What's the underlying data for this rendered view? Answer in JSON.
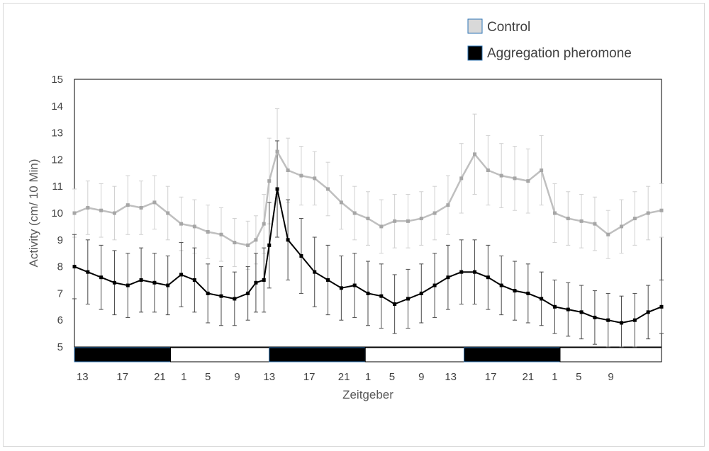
{
  "chart_data": {
    "type": "scatter",
    "xlabel": "Zeitgeber",
    "ylabel": "Activity (cm/ 10 Min)",
    "ylim": [
      5,
      15
    ],
    "yticks": [
      5,
      6,
      7,
      8,
      9,
      10,
      11,
      12,
      13,
      14,
      15
    ],
    "xlim": [
      0,
      22
    ],
    "x_tick_labels": [
      {
        "label": "13",
        "x": 0.3
      },
      {
        "label": "17",
        "x": 1.8
      },
      {
        "label": "21",
        "x": 3.2
      },
      {
        "label": "1",
        "x": 4.1
      },
      {
        "label": "5",
        "x": 5.0
      },
      {
        "label": "9",
        "x": 6.1
      },
      {
        "label": "13",
        "x": 7.3
      },
      {
        "label": "17",
        "x": 8.8
      },
      {
        "label": "21",
        "x": 10.1
      },
      {
        "label": "1",
        "x": 11.0
      },
      {
        "label": "5",
        "x": 11.9
      },
      {
        "label": "9",
        "x": 13.0
      },
      {
        "label": "13",
        "x": 14.1
      },
      {
        "label": "17",
        "x": 15.6
      },
      {
        "label": "21",
        "x": 17.0
      },
      {
        "label": "1",
        "x": 18.0
      },
      {
        "label": "5",
        "x": 18.9
      },
      {
        "label": "9",
        "x": 20.1
      }
    ],
    "light_dark_bar": [
      {
        "state": "dark",
        "start": 0.0,
        "end": 3.6
      },
      {
        "state": "light",
        "start": 3.6,
        "end": 7.3
      },
      {
        "state": "dark",
        "start": 7.3,
        "end": 10.9
      },
      {
        "state": "light",
        "start": 10.9,
        "end": 14.6
      },
      {
        "state": "dark",
        "start": 14.6,
        "end": 18.2
      },
      {
        "state": "light",
        "start": 18.2,
        "end": 22.0
      }
    ],
    "legend_position": "top-right",
    "series": [
      {
        "name": "Control",
        "color": "#bfbfbf",
        "marker_color": "#a6a6a6",
        "x": [
          0.0,
          0.5,
          1.0,
          1.5,
          2.0,
          2.5,
          3.0,
          3.5,
          4.0,
          4.5,
          5.0,
          5.5,
          6.0,
          6.5,
          6.8,
          7.1,
          7.3,
          7.6,
          8.0,
          8.5,
          9.0,
          9.5,
          10.0,
          10.5,
          11.0,
          11.5,
          12.0,
          12.5,
          13.0,
          13.5,
          14.0,
          14.5,
          15.0,
          15.5,
          16.0,
          16.5,
          17.0,
          17.5,
          18.0,
          18.5,
          19.0,
          19.5,
          20.0,
          20.5,
          21.0,
          21.5,
          22.0
        ],
        "y": [
          10.0,
          10.2,
          10.1,
          10.0,
          10.3,
          10.2,
          10.4,
          10.0,
          9.6,
          9.5,
          9.3,
          9.2,
          8.9,
          8.8,
          9.0,
          9.6,
          11.2,
          12.3,
          11.6,
          11.4,
          11.3,
          10.9,
          10.4,
          10.0,
          9.8,
          9.5,
          9.7,
          9.7,
          9.8,
          10.0,
          10.3,
          11.3,
          12.2,
          11.6,
          11.4,
          11.3,
          11.2,
          11.6,
          10.0,
          9.8,
          9.7,
          9.6,
          9.2,
          9.5,
          9.8,
          10.0,
          10.1
        ],
        "error": [
          0.9,
          1.0,
          1.0,
          1.0,
          1.1,
          1.0,
          1.0,
          1.0,
          1.0,
          1.0,
          1.0,
          1.0,
          0.9,
          0.9,
          0.9,
          1.1,
          1.6,
          1.6,
          1.2,
          1.1,
          1.0,
          1.0,
          1.0,
          1.0,
          1.0,
          1.0,
          1.0,
          1.0,
          1.0,
          1.0,
          1.1,
          1.3,
          1.5,
          1.3,
          1.2,
          1.2,
          1.2,
          1.3,
          1.1,
          1.0,
          1.0,
          1.0,
          0.9,
          1.0,
          1.0,
          1.0,
          1.0
        ]
      },
      {
        "name": "Aggregation pheromone",
        "color": "#000000",
        "marker_color": "#000000",
        "x": [
          0.0,
          0.5,
          1.0,
          1.5,
          2.0,
          2.5,
          3.0,
          3.5,
          4.0,
          4.5,
          5.0,
          5.5,
          6.0,
          6.5,
          6.8,
          7.1,
          7.3,
          7.6,
          8.0,
          8.5,
          9.0,
          9.5,
          10.0,
          10.5,
          11.0,
          11.5,
          12.0,
          12.5,
          13.0,
          13.5,
          14.0,
          14.5,
          15.0,
          15.5,
          16.0,
          16.5,
          17.0,
          17.5,
          18.0,
          18.5,
          19.0,
          19.5,
          20.0,
          20.5,
          21.0,
          21.5,
          22.0
        ],
        "y": [
          8.0,
          7.8,
          7.6,
          7.4,
          7.3,
          7.5,
          7.4,
          7.3,
          7.7,
          7.5,
          7.0,
          6.9,
          6.8,
          7.0,
          7.4,
          7.5,
          8.8,
          10.9,
          9.0,
          8.4,
          7.8,
          7.5,
          7.2,
          7.3,
          7.0,
          6.9,
          6.6,
          6.8,
          7.0,
          7.3,
          7.6,
          7.8,
          7.8,
          7.6,
          7.3,
          7.1,
          7.0,
          6.8,
          6.5,
          6.4,
          6.3,
          6.1,
          6.0,
          5.9,
          6.0,
          6.3,
          6.5
        ],
        "error": [
          1.2,
          1.2,
          1.2,
          1.2,
          1.2,
          1.2,
          1.1,
          1.1,
          1.2,
          1.2,
          1.1,
          1.1,
          1.0,
          1.0,
          1.1,
          1.2,
          1.6,
          1.8,
          1.5,
          1.4,
          1.3,
          1.3,
          1.2,
          1.2,
          1.2,
          1.2,
          1.1,
          1.1,
          1.1,
          1.2,
          1.2,
          1.2,
          1.2,
          1.2,
          1.1,
          1.1,
          1.1,
          1.0,
          1.0,
          1.0,
          1.0,
          1.0,
          1.0,
          1.0,
          1.0,
          1.0,
          1.0
        ]
      }
    ]
  }
}
